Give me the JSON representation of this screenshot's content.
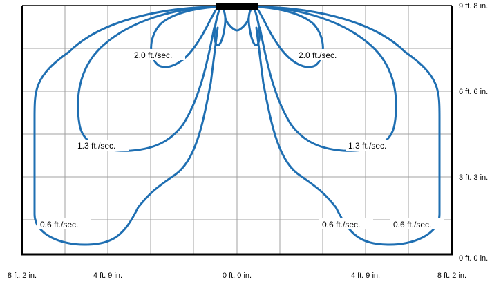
{
  "colors": {
    "curve": "#1f6fb2",
    "grid": "#a0a0a0",
    "frame": "#000000",
    "diffuser": "#000000"
  },
  "diagram": {
    "x_ticks": [
      "8 ft. 2 in.",
      "4 ft. 9 in.",
      "0 ft. 0 in.",
      "4 ft. 9 in.",
      "8 ft. 2 in."
    ],
    "y_ticks": [
      "9 ft. 8 in.",
      "6 ft. 6 in.",
      "3 ft. 3 in.",
      "0 ft. 0 in."
    ],
    "velocity_labels": {
      "left_high": "2.0 ft./sec.",
      "right_high": "2.0 ft./sec.",
      "left_mid": "1.3 ft./sec.",
      "right_mid": "1.3 ft./sec.",
      "left_low": "0.6 ft./sec.",
      "right_low_inner": "0.6 ft./sec.",
      "right_low_outer": "0.6 ft./sec."
    }
  }
}
